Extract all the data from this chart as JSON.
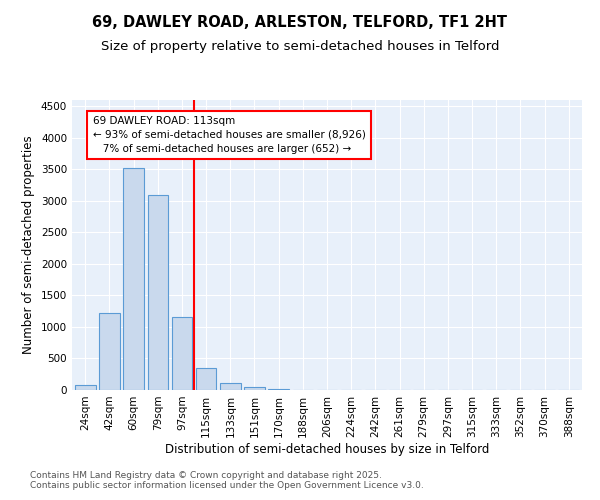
{
  "title": "69, DAWLEY ROAD, ARLESTON, TELFORD, TF1 2HT",
  "subtitle": "Size of property relative to semi-detached houses in Telford",
  "xlabel": "Distribution of semi-detached houses by size in Telford",
  "ylabel": "Number of semi-detached properties",
  "bin_labels": [
    "24sqm",
    "42sqm",
    "60sqm",
    "79sqm",
    "97sqm",
    "115sqm",
    "133sqm",
    "151sqm",
    "170sqm",
    "188sqm",
    "206sqm",
    "224sqm",
    "242sqm",
    "261sqm",
    "279sqm",
    "297sqm",
    "315sqm",
    "333sqm",
    "352sqm",
    "370sqm",
    "388sqm"
  ],
  "bar_values": [
    75,
    1220,
    3520,
    3100,
    1160,
    350,
    105,
    55,
    20,
    5,
    2,
    0,
    0,
    0,
    0,
    0,
    0,
    0,
    0,
    0,
    0
  ],
  "bar_color": "#c9d9ed",
  "bar_edge_color": "#5b9bd5",
  "vline_index": 5,
  "vline_color": "red",
  "annotation_line1": "69 DAWLEY ROAD: 113sqm",
  "annotation_line2": "← 93% of semi-detached houses are smaller (8,926)",
  "annotation_line3": "   7% of semi-detached houses are larger (652) →",
  "annotation_text_fontsize": 7.5,
  "ylim": [
    0,
    4600
  ],
  "yticks": [
    0,
    500,
    1000,
    1500,
    2000,
    2500,
    3000,
    3500,
    4000,
    4500
  ],
  "plot_bg_color": "#e8f0fa",
  "footer_text": "Contains HM Land Registry data © Crown copyright and database right 2025.\nContains public sector information licensed under the Open Government Licence v3.0.",
  "title_fontsize": 10.5,
  "subtitle_fontsize": 9.5,
  "xlabel_fontsize": 8.5,
  "ylabel_fontsize": 8.5,
  "tick_fontsize": 7.5,
  "footer_fontsize": 6.5
}
